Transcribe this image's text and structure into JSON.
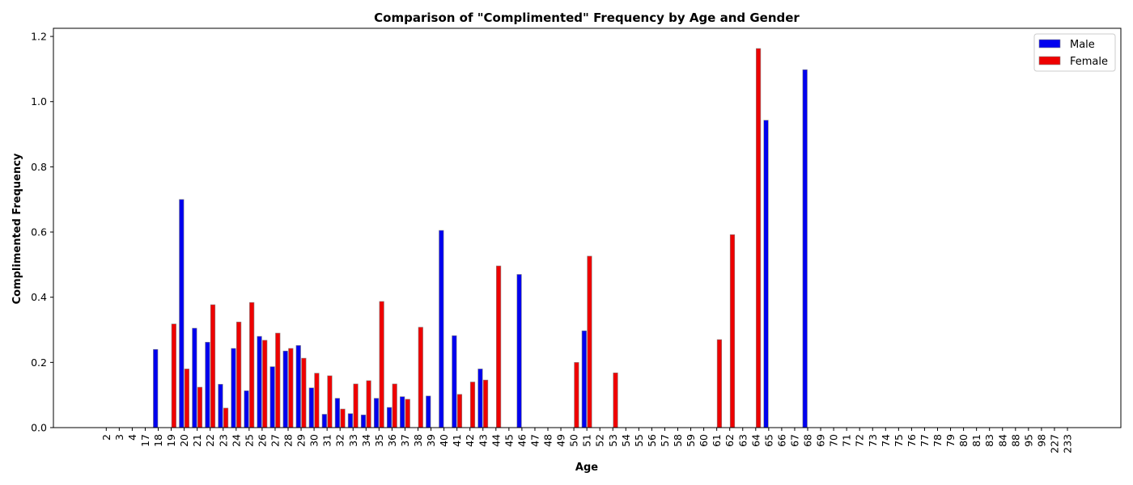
{
  "chart_data": {
    "type": "bar",
    "title": "Comparison of \"Complimented\" Frequency by Age and Gender",
    "xlabel": "Age",
    "ylabel": "Complimented Frequency",
    "ylim": [
      0,
      1.225
    ],
    "yticks": [
      "0.0",
      "0.2",
      "0.4",
      "0.6",
      "0.8",
      "1.0",
      "1.2"
    ],
    "ytick_values": [
      0,
      0.2,
      0.4,
      0.6,
      0.8,
      1.0,
      1.2
    ],
    "legend_position": "top-right",
    "categories": [
      "2",
      "3",
      "4",
      "17",
      "18",
      "19",
      "20",
      "21",
      "22",
      "23",
      "24",
      "25",
      "26",
      "27",
      "28",
      "29",
      "30",
      "31",
      "32",
      "33",
      "34",
      "35",
      "36",
      "37",
      "38",
      "39",
      "40",
      "41",
      "42",
      "43",
      "44",
      "45",
      "46",
      "47",
      "48",
      "49",
      "50",
      "51",
      "52",
      "53",
      "54",
      "55",
      "56",
      "57",
      "58",
      "59",
      "60",
      "61",
      "62",
      "63",
      "64",
      "65",
      "66",
      "67",
      "68",
      "69",
      "70",
      "71",
      "72",
      "73",
      "74",
      "75",
      "76",
      "77",
      "78",
      "79",
      "80",
      "81",
      "83",
      "84",
      "88",
      "95",
      "98",
      "227",
      "233"
    ],
    "series": [
      {
        "name": "Male",
        "color": "#0000ee",
        "values": [
          0,
          0,
          0,
          0,
          0.24,
          0,
          0.7,
          0.305,
          0.262,
          0.133,
          0.243,
          0.113,
          0.28,
          0.187,
          0.235,
          0.252,
          0.122,
          0.041,
          0.09,
          0.043,
          0.039,
          0.09,
          0.062,
          0.095,
          0,
          0.097,
          0.605,
          0.282,
          0,
          0.18,
          0,
          0,
          0.47,
          0,
          0,
          0,
          0,
          0.297,
          0,
          0,
          0,
          0,
          0,
          0,
          0,
          0,
          0,
          0,
          0,
          0,
          0,
          0.943,
          0,
          0,
          1.098,
          0,
          0,
          0,
          0,
          0,
          0,
          0,
          0,
          0,
          0,
          0,
          0,
          0,
          0,
          0,
          0,
          0,
          0,
          0,
          0
        ]
      },
      {
        "name": "Female",
        "color": "#ee0000",
        "values": [
          0,
          0,
          0,
          0,
          0,
          0.318,
          0.18,
          0.124,
          0.377,
          0.06,
          0.324,
          0.384,
          0.268,
          0.29,
          0.243,
          0.213,
          0.167,
          0.159,
          0.057,
          0.134,
          0.144,
          0.387,
          0.134,
          0.087,
          0.308,
          0,
          0,
          0.102,
          0.14,
          0.146,
          0.496,
          0,
          0,
          0,
          0,
          0,
          0.2,
          0.526,
          0,
          0.168,
          0,
          0,
          0,
          0,
          0,
          0,
          0,
          0.27,
          0.592,
          0,
          1.163,
          0,
          0,
          0,
          0,
          0,
          0,
          0,
          0,
          0,
          0,
          0,
          0,
          0,
          0,
          0,
          0,
          0,
          0,
          0,
          0,
          0,
          0,
          0,
          0
        ]
      }
    ]
  }
}
